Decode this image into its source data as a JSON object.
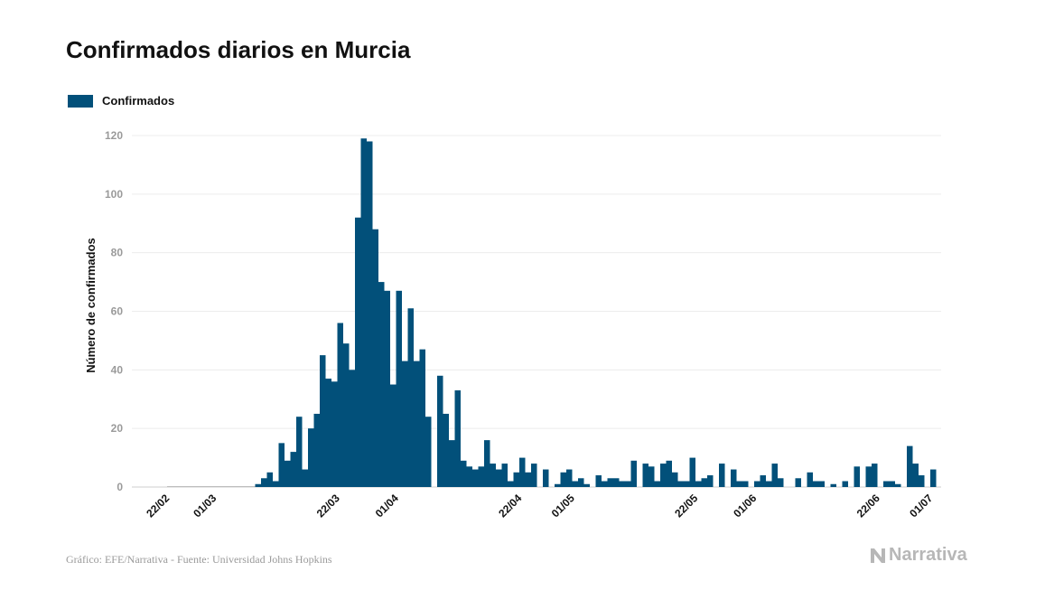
{
  "chart_data": {
    "type": "bar",
    "title": "Confirmados diarios en Murcia",
    "ylabel": "Número de confirmados",
    "ylim": [
      0,
      120
    ],
    "yticks": [
      0,
      20,
      40,
      60,
      80,
      100,
      120
    ],
    "grid": true,
    "legend_position": "top-left",
    "color": "#02507a",
    "series": [
      {
        "name": "Confirmados",
        "values": [
          0,
          0,
          0,
          0,
          0,
          0,
          0,
          0,
          0,
          0,
          0,
          0,
          0,
          0,
          0,
          1,
          3,
          5,
          2,
          15,
          9,
          12,
          24,
          6,
          20,
          25,
          45,
          37,
          36,
          56,
          49,
          40,
          92,
          119,
          118,
          88,
          70,
          67,
          35,
          67,
          43,
          61,
          43,
          47,
          24,
          0,
          38,
          25,
          16,
          33,
          9,
          7,
          6,
          7,
          16,
          8,
          6,
          8,
          2,
          5,
          10,
          5,
          8,
          0,
          6,
          0,
          1,
          5,
          6,
          2,
          3,
          1,
          0,
          4,
          2,
          3,
          3,
          2,
          2,
          9,
          0,
          8,
          7,
          2,
          8,
          9,
          5,
          2,
          2,
          10,
          2,
          3,
          4,
          0,
          8,
          0,
          6,
          2,
          2,
          0,
          2,
          4,
          2,
          8,
          3,
          0,
          0,
          3,
          0,
          5,
          2,
          2,
          0,
          1,
          0,
          2,
          0,
          7,
          0,
          7,
          8,
          0,
          2,
          2,
          1,
          0,
          14,
          8,
          4,
          0,
          6
        ]
      }
    ],
    "x_start": "2020-02-22",
    "x_tick_labels": [
      "22/02",
      "01/03",
      "22/03",
      "01/04",
      "22/04",
      "01/05",
      "22/05",
      "01/06",
      "22/06",
      "01/07"
    ],
    "x_tick_dates": [
      "2020-02-22",
      "2020-03-01",
      "2020-03-22",
      "2020-04-01",
      "2020-04-22",
      "2020-05-01",
      "2020-05-22",
      "2020-06-01",
      "2020-06-22",
      "2020-07-01"
    ]
  },
  "footer": {
    "credit": "Gráfico: EFE/Narrativa - Fuente: Universidad Johns Hopkins",
    "brand": "Narrativa"
  }
}
